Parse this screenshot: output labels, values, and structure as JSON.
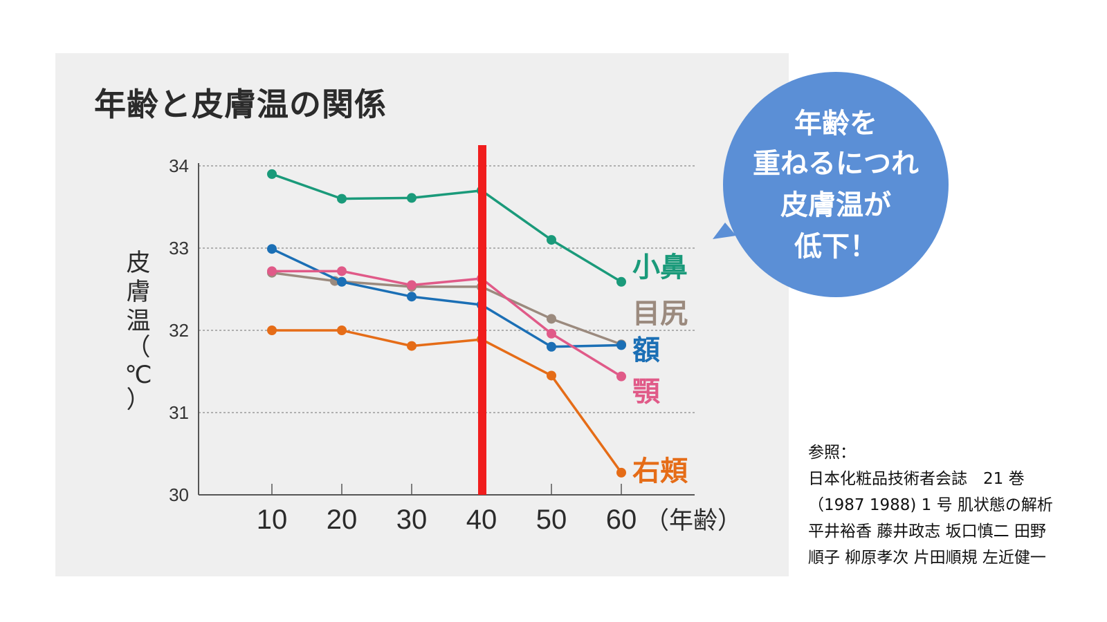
{
  "chart_data": {
    "type": "line",
    "title": "年齢と皮膚温の関係",
    "ylabel": [
      "皮",
      "膚",
      "温",
      "（",
      "℃",
      "）"
    ],
    "xunit": "（年齢）",
    "categories": [
      10,
      20,
      30,
      40,
      50,
      60
    ],
    "xlabels": [
      "10",
      "20",
      "30",
      "40",
      "50",
      "60"
    ],
    "ylim": [
      30,
      34
    ],
    "yticks": [
      "30",
      "31",
      "32",
      "33",
      "34"
    ],
    "grid": "horizontal-dotted",
    "highlight_x": 40,
    "series": [
      {
        "name": "小鼻",
        "color": "#1a9a7a",
        "points": [
          [
            10,
            33.9
          ],
          [
            20,
            33.6
          ],
          [
            30,
            33.61
          ],
          [
            40,
            33.7
          ],
          [
            50,
            33.1
          ],
          [
            60,
            32.59
          ]
        ]
      },
      {
        "name": "目尻",
        "color": "#9b8a7e",
        "points": [
          [
            10,
            32.7
          ],
          [
            19,
            32.6
          ],
          [
            30,
            32.53
          ],
          [
            40,
            32.53
          ],
          [
            50,
            32.14
          ],
          [
            60,
            31.83
          ]
        ]
      },
      {
        "name": "額",
        "color": "#1b6fb5",
        "points": [
          [
            10,
            32.99
          ],
          [
            20,
            32.59
          ],
          [
            30,
            32.41
          ],
          [
            40,
            32.31
          ],
          [
            50,
            31.8
          ],
          [
            60,
            31.82
          ]
        ]
      },
      {
        "name": "顎",
        "color": "#e05a88",
        "points": [
          [
            10,
            32.72
          ],
          [
            20,
            32.72
          ],
          [
            30,
            32.55
          ],
          [
            40,
            32.63
          ],
          [
            50,
            31.96
          ],
          [
            60,
            31.44
          ]
        ]
      },
      {
        "name": "右頬",
        "color": "#e56c17",
        "points": [
          [
            10,
            32.0
          ],
          [
            20,
            32.0
          ],
          [
            30,
            31.81
          ],
          [
            40,
            31.89
          ],
          [
            50,
            31.45
          ],
          [
            60,
            30.27
          ]
        ]
      }
    ]
  },
  "bubble": {
    "lines": [
      "年齢を",
      "重ねるにつれ",
      "皮膚温が",
      "低下！"
    ],
    "color": "#5b8fd6"
  },
  "reference": {
    "lines": [
      "参照：",
      "日本化粧品技術者会誌　21 巻",
      "（1987 1988) 1 号 肌状態の解析",
      "平井裕香 藤井政志 坂口慎二 田野",
      "順子 柳原孝次 片田順規 左近健一"
    ]
  }
}
